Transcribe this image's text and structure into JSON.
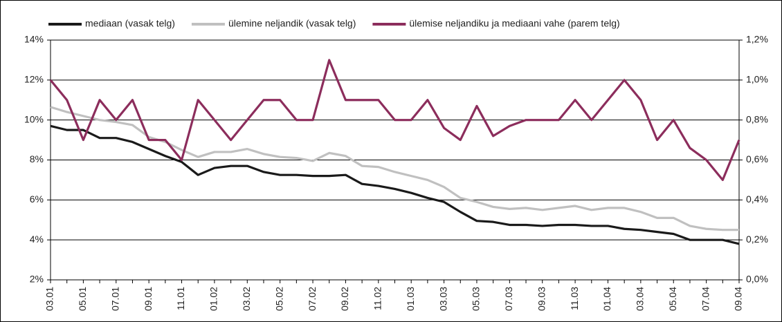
{
  "chart_data": {
    "type": "line",
    "categories": [
      "03.01",
      null,
      "05.01",
      null,
      "07.01",
      null,
      "09.01",
      null,
      "11.01",
      null,
      "01.02",
      null,
      "03.02",
      null,
      "05.02",
      null,
      "07.02",
      null,
      "09.02",
      null,
      "11.02",
      null,
      "01.03",
      null,
      "03.03",
      null,
      "05.03",
      null,
      "07.03",
      null,
      "09.03",
      null,
      "11.03",
      null,
      "01.04",
      null,
      "03.04",
      null,
      "05.04",
      null,
      "07.04",
      null,
      "09.04"
    ],
    "series": [
      {
        "name": "mediaan (vasak telg)",
        "color": "#1a1a1a",
        "values": [
          9.7,
          9.5,
          9.5,
          9.1,
          9.1,
          8.9,
          8.55,
          8.2,
          7.9,
          7.25,
          7.6,
          7.7,
          7.7,
          7.4,
          7.25,
          7.25,
          7.2,
          7.2,
          7.25,
          6.8,
          6.7,
          6.55,
          6.35,
          6.1,
          5.9,
          5.4,
          4.95,
          4.9,
          4.75,
          4.75,
          4.7,
          4.75,
          4.75,
          4.7,
          4.7,
          4.55,
          4.5,
          4.4,
          4.3,
          4.0,
          4.0,
          4.0,
          3.8
        ]
      },
      {
        "name": "ülemine neljandik (vasak telg)",
        "color": "#c0c0c0",
        "values": [
          10.65,
          10.4,
          10.2,
          10.0,
          9.9,
          9.75,
          9.15,
          8.9,
          8.5,
          8.15,
          8.4,
          8.4,
          8.55,
          8.3,
          8.15,
          8.1,
          7.95,
          8.35,
          8.2,
          7.7,
          7.65,
          7.4,
          7.2,
          7.0,
          6.65,
          6.1,
          5.9,
          5.65,
          5.55,
          5.6,
          5.5,
          5.6,
          5.7,
          5.5,
          5.6,
          5.6,
          5.4,
          5.1,
          5.1,
          4.7,
          4.55,
          4.5,
          4.5
        ]
      },
      {
        "name": "ülemise neljandiku ja mediaani vahe (parem telg)",
        "color": "#8c2d5c",
        "axis": "y2",
        "values": [
          1.0,
          0.9,
          0.7,
          0.9,
          0.8,
          0.9,
          0.7,
          0.7,
          0.6,
          0.9,
          0.8,
          0.7,
          0.8,
          0.9,
          0.9,
          0.8,
          0.8,
          1.1,
          0.9,
          0.9,
          0.9,
          0.8,
          0.8,
          0.9,
          0.76,
          0.7,
          0.87,
          0.72,
          0.77,
          0.8,
          0.8,
          0.8,
          0.9,
          0.8,
          0.9,
          1.0,
          0.9,
          0.7,
          0.8,
          0.66,
          0.6,
          0.5,
          0.7
        ]
      }
    ],
    "ylim": [
      2,
      14
    ],
    "yticks": [
      {
        "value": 2,
        "label": "2%"
      },
      {
        "value": 4,
        "label": "4%"
      },
      {
        "value": 6,
        "label": "6%"
      },
      {
        "value": 8,
        "label": "8%"
      },
      {
        "value": 10,
        "label": "10%"
      },
      {
        "value": 12,
        "label": "12%"
      },
      {
        "value": 14,
        "label": "14%"
      }
    ],
    "y2lim": [
      0,
      1.2
    ],
    "y2ticks": [
      {
        "value": 0,
        "label": "0,0%"
      },
      {
        "value": 0.2,
        "label": "0,2%"
      },
      {
        "value": 0.4,
        "label": "0,4%"
      },
      {
        "value": 0.6,
        "label": "0,6%"
      },
      {
        "value": 0.8,
        "label": "0,8%"
      },
      {
        "value": 1.0,
        "label": "1,0%"
      },
      {
        "value": 1.2,
        "label": "1,2%"
      }
    ],
    "grid": true,
    "legend": "top"
  }
}
